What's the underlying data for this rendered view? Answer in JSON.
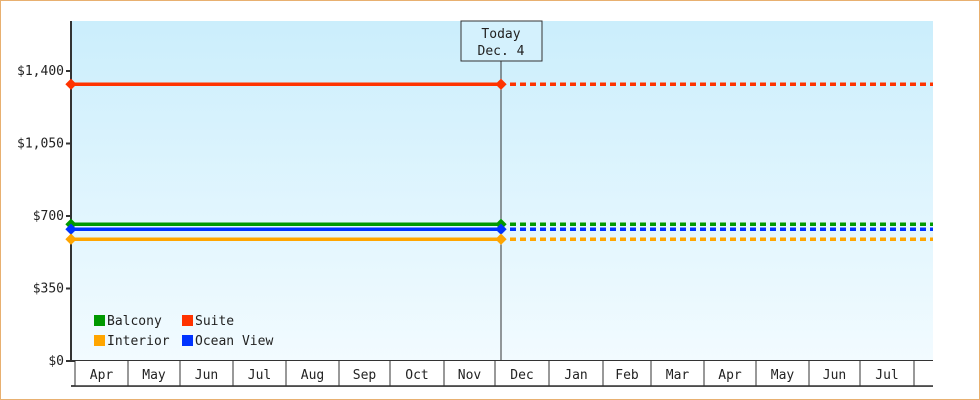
{
  "chart_data": {
    "type": "line",
    "title": "",
    "xlabel": "",
    "ylabel": "",
    "ylim": [
      0,
      1400
    ],
    "y_ticks": [
      "$0",
      "$350",
      "$700",
      "$1,050",
      "$1,400"
    ],
    "y_tick_values": [
      0,
      350,
      700,
      1050,
      1400
    ],
    "months": [
      "Apr",
      "May",
      "Jun",
      "Jul",
      "Aug",
      "Sep",
      "Oct",
      "Nov",
      "Dec",
      "Jan",
      "Feb",
      "Mar",
      "Apr",
      "May",
      "Jun",
      "Jul"
    ],
    "today_marker": {
      "line1": "Today",
      "line2": "Dec. 4"
    },
    "grid": false,
    "legend_position": "bottom-left",
    "series": [
      {
        "name": "Balcony",
        "color": "#009900",
        "value": 660
      },
      {
        "name": "Suite",
        "color": "#ff3300",
        "value": 1336
      },
      {
        "name": "Interior",
        "color": "#ffa500",
        "value": 588
      },
      {
        "name": "Ocean View",
        "color": "#0033ff",
        "value": 636
      }
    ],
    "style_note_solid_until_today_dashed_after": true
  }
}
